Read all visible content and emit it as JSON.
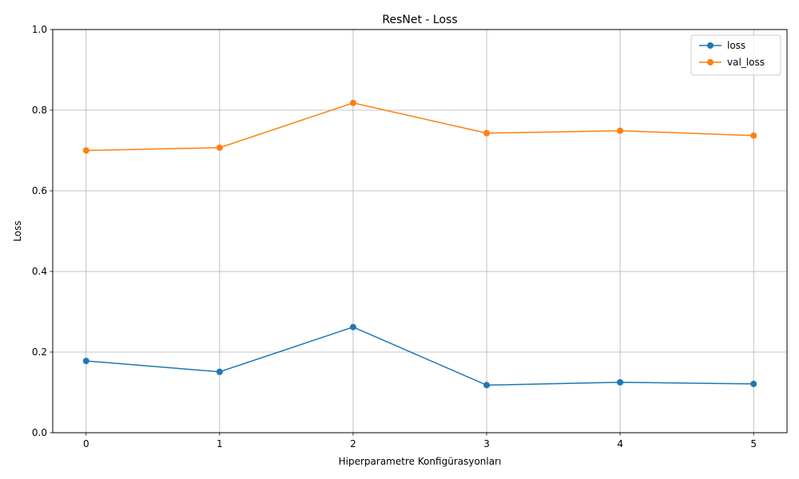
{
  "chart_data": {
    "type": "line",
    "title": "ResNet - Loss",
    "xlabel": "Hiperparametre Konfigürasyonları",
    "ylabel": "Loss",
    "x": [
      0,
      1,
      2,
      3,
      4,
      5
    ],
    "xticks": [
      "0",
      "1",
      "2",
      "3",
      "4",
      "5"
    ],
    "yticks": [
      "0.0",
      "0.2",
      "0.4",
      "0.6",
      "0.8",
      "1.0"
    ],
    "xlim": [
      -0.25,
      5.25
    ],
    "ylim": [
      0,
      1
    ],
    "grid": true,
    "legend_position": "top-right",
    "series": [
      {
        "name": "loss",
        "color": "#1f77b4",
        "marker": "circle",
        "values": [
          0.178,
          0.151,
          0.262,
          0.118,
          0.125,
          0.121
        ]
      },
      {
        "name": "val_loss",
        "color": "#ff7f0e",
        "marker": "circle",
        "values": [
          0.7,
          0.707,
          0.818,
          0.743,
          0.749,
          0.737
        ]
      }
    ]
  }
}
